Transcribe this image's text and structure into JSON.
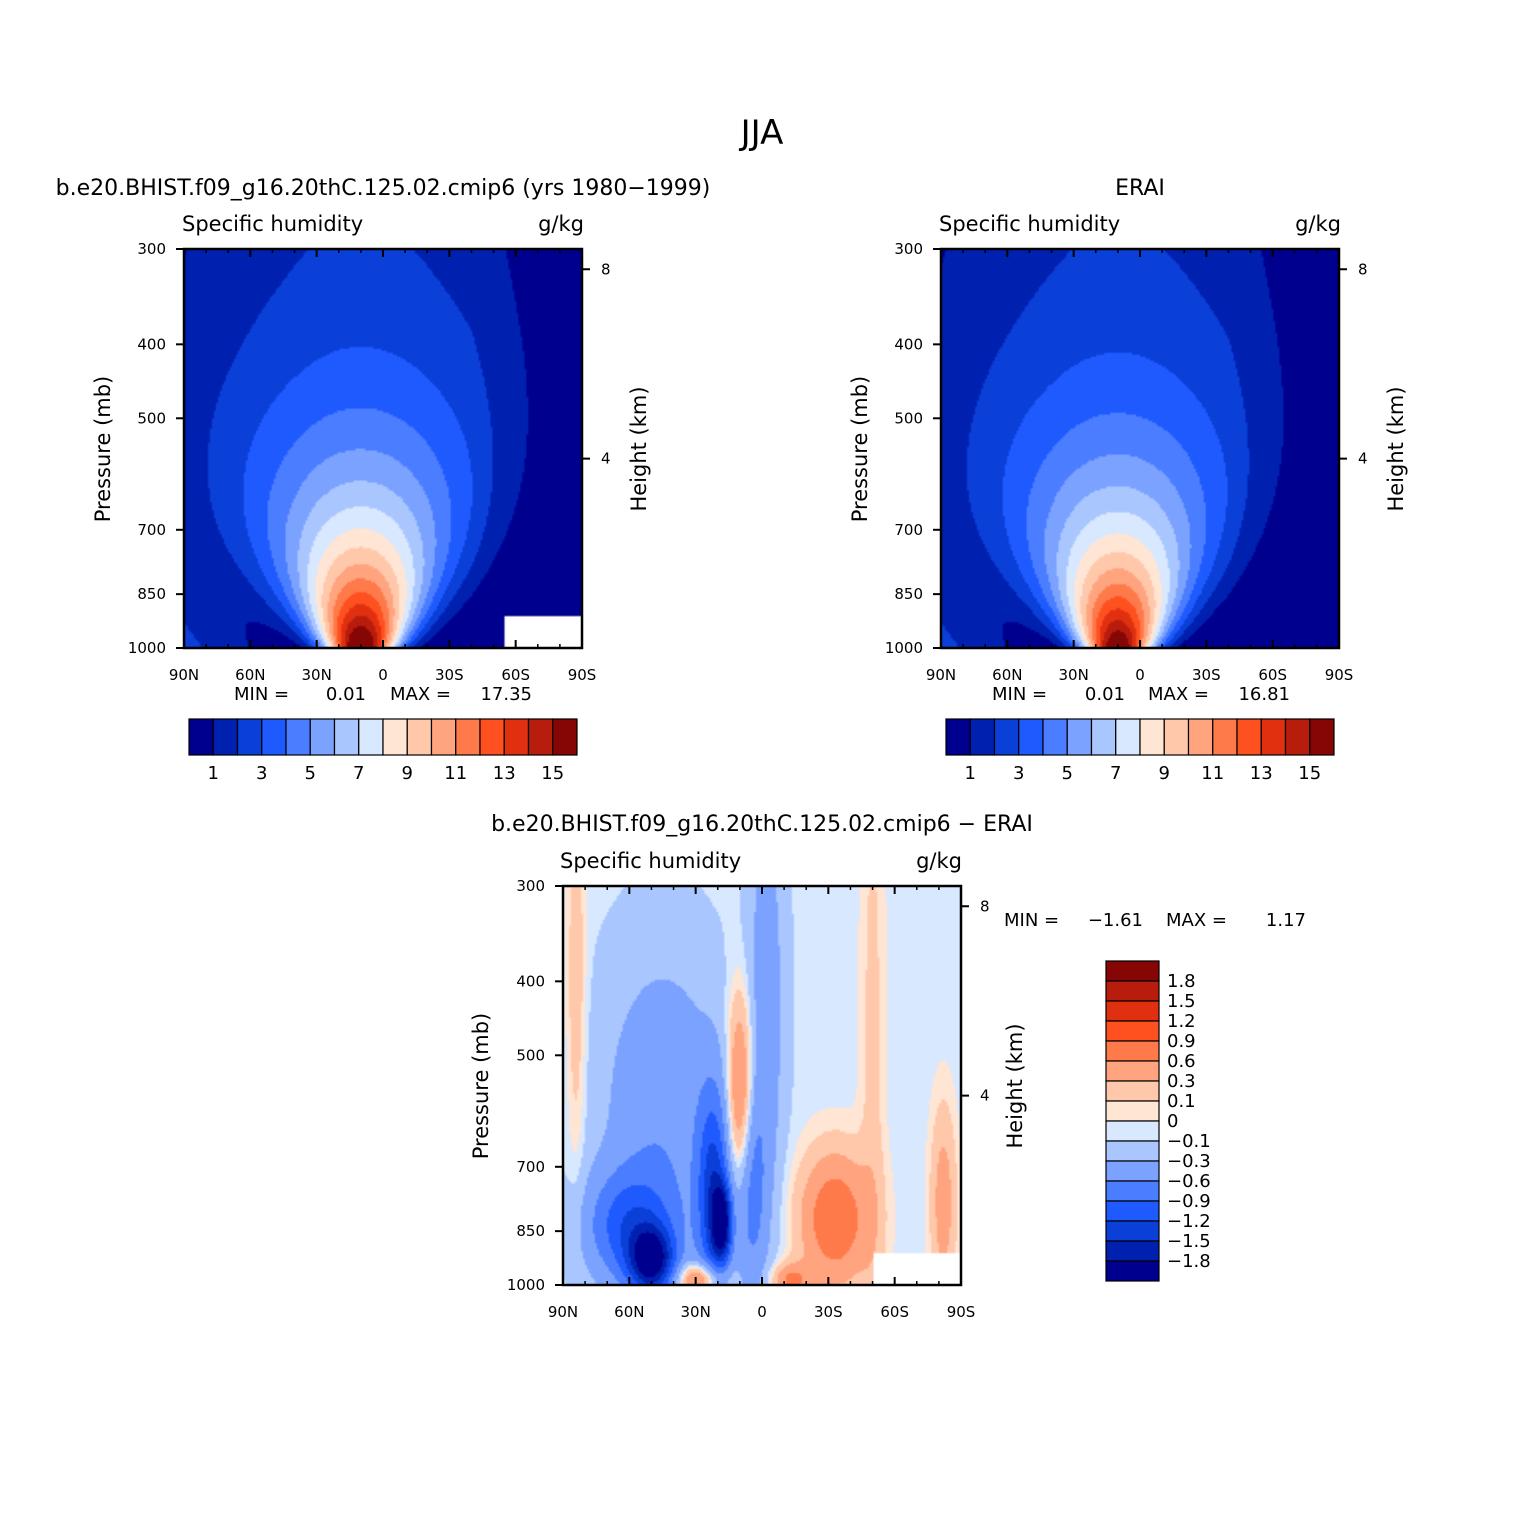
{
  "figure": {
    "title": "JJA"
  },
  "colors": {
    "abs_scale": [
      "#00008f",
      "#0020b0",
      "#0a3fd8",
      "#1f5aff",
      "#4a7dff",
      "#7ba2ff",
      "#a9c6ff",
      "#d8e8ff",
      "#ffe5d4",
      "#ffc8ab",
      "#ffa47f",
      "#ff7a4a",
      "#ff5020",
      "#e03010",
      "#b81c0c",
      "#860605"
    ],
    "diff_scale": [
      "#00008f",
      "#0020b0",
      "#0a3fd8",
      "#1f5aff",
      "#4a7dff",
      "#7ba2ff",
      "#a9c6ff",
      "#d8e8ff",
      "#ffe5d4",
      "#ffc8ab",
      "#ffa47f",
      "#ff7a4a",
      "#ff5020",
      "#e03010",
      "#b81c0c",
      "#860605"
    ]
  },
  "chart_data": [
    {
      "type": "heatmap",
      "id": "model",
      "title": "b.e20.BHIST.f09_g16.20thC.125.02.cmip6 (yrs 1980−1999)",
      "left_string": "Specific humidity",
      "right_string": "g/kg",
      "ylabel": "Pressure (mb)",
      "ylabel_right": "Height (km)",
      "x_ticks": [
        "90N",
        "60N",
        "30N",
        "0",
        "30S",
        "60S",
        "90S"
      ],
      "x_range": [
        90,
        -90
      ],
      "y_ticks": [
        300,
        400,
        500,
        700,
        850,
        1000
      ],
      "y_range": [
        300,
        1000
      ],
      "y_scale": "log",
      "y_right_ticks": [
        8,
        4
      ],
      "min_label": "MIN =",
      "min_value": "0.01",
      "max_label": "MAX =",
      "max_value": "17.35",
      "peak": {
        "lat": 10,
        "value": 17.35
      },
      "levels": [
        0,
        1,
        2,
        3,
        4,
        5,
        6,
        7,
        8,
        9,
        10,
        11,
        12,
        13,
        14,
        15,
        16
      ],
      "colorbar_labels": [
        "1",
        "3",
        "5",
        "7",
        "9",
        "11",
        "13",
        "15"
      ],
      "missing": {
        "lat_range": [
          -55,
          -90
        ],
        "p_range": [
          910,
          1000
        ]
      }
    },
    {
      "type": "heatmap",
      "id": "obs",
      "title": "ERAI",
      "left_string": "Specific humidity",
      "right_string": "g/kg",
      "ylabel": "Pressure (mb)",
      "ylabel_right": "Height (km)",
      "x_ticks": [
        "90N",
        "60N",
        "30N",
        "0",
        "30S",
        "60S",
        "90S"
      ],
      "x_range": [
        90,
        -90
      ],
      "y_ticks": [
        300,
        400,
        500,
        700,
        850,
        1000
      ],
      "y_range": [
        300,
        1000
      ],
      "y_scale": "log",
      "y_right_ticks": [
        8,
        4
      ],
      "min_label": "MIN =",
      "min_value": "0.01",
      "max_label": "MAX =",
      "max_value": "16.81",
      "peak": {
        "lat": 10,
        "value": 16.81
      },
      "levels": [
        0,
        1,
        2,
        3,
        4,
        5,
        6,
        7,
        8,
        9,
        10,
        11,
        12,
        13,
        14,
        15,
        16
      ],
      "colorbar_labels": [
        "1",
        "3",
        "5",
        "7",
        "9",
        "11",
        "13",
        "15"
      ]
    },
    {
      "type": "heatmap",
      "id": "diff",
      "title": "b.e20.BHIST.f09_g16.20thC.125.02.cmip6 − ERAI",
      "left_string": "Specific humidity",
      "right_string": "g/kg",
      "ylabel": "Pressure (mb)",
      "ylabel_right": "Height (km)",
      "x_ticks": [
        "90N",
        "60N",
        "30N",
        "0",
        "30S",
        "60S",
        "90S"
      ],
      "x_range": [
        90,
        -90
      ],
      "y_ticks": [
        300,
        400,
        500,
        700,
        850,
        1000
      ],
      "y_range": [
        300,
        1000
      ],
      "y_scale": "log",
      "y_right_ticks": [
        8,
        4
      ],
      "min_label": "MIN =",
      "min_value": "−1.61",
      "max_label": "MAX =",
      "max_value": "1.17",
      "levels": [
        -2.1,
        -1.8,
        -1.5,
        -1.2,
        -0.9,
        -0.6,
        -0.3,
        -0.1,
        0,
        0.1,
        0.3,
        0.6,
        0.9,
        1.2,
        1.5,
        1.8,
        2.1
      ],
      "colorbar_labels": [
        "1.8",
        "1.5",
        "1.2",
        "0.9",
        "0.6",
        "0.3",
        "0.1",
        "0",
        "−0.1",
        "−0.3",
        "−0.6",
        "−0.9",
        "−1.2",
        "−1.5",
        "−1.8"
      ],
      "missing": {
        "lat_range": [
          -50,
          -90
        ],
        "p_range": [
          910,
          1000
        ]
      },
      "features": [
        {
          "lat": 22,
          "p": 770,
          "amp": -1.2,
          "slat": 5,
          "sp": 0.22
        },
        {
          "lat": 18,
          "p": 830,
          "amp": -1.5,
          "slat": 3,
          "sp": 0.08
        },
        {
          "lat": 50,
          "p": 930,
          "amp": -1.6,
          "slat": 7,
          "sp": 0.07
        },
        {
          "lat": 60,
          "p": 840,
          "amp": -0.9,
          "slat": 14,
          "sp": 0.12
        },
        {
          "lat": 45,
          "p": 600,
          "amp": -0.5,
          "slat": 20,
          "sp": 0.35
        },
        {
          "lat": 5,
          "p": 760,
          "amp": -0.6,
          "slat": 5,
          "sp": 0.22
        },
        {
          "lat": -2,
          "p": 420,
          "amp": -0.4,
          "slat": 6,
          "sp": 0.5
        },
        {
          "lat": 10,
          "p": 560,
          "amp": 0.9,
          "slat": 4,
          "sp": 0.2
        },
        {
          "lat": -33,
          "p": 820,
          "amp": 0.95,
          "slat": 11,
          "sp": 0.14
        },
        {
          "lat": 28,
          "p": 985,
          "amp": 1.0,
          "slat": 7,
          "sp": 0.035
        },
        {
          "lat": -13,
          "p": 985,
          "amp": 0.7,
          "slat": 6,
          "sp": 0.035
        },
        {
          "lat": 84,
          "p": 420,
          "amp": 0.3,
          "slat": 3,
          "sp": 0.4
        },
        {
          "lat": -50,
          "p": 500,
          "amp": 0.2,
          "slat": 4,
          "sp": 0.8
        },
        {
          "lat": -82,
          "p": 780,
          "amp": 0.5,
          "slat": 4,
          "sp": 0.2
        }
      ]
    }
  ]
}
